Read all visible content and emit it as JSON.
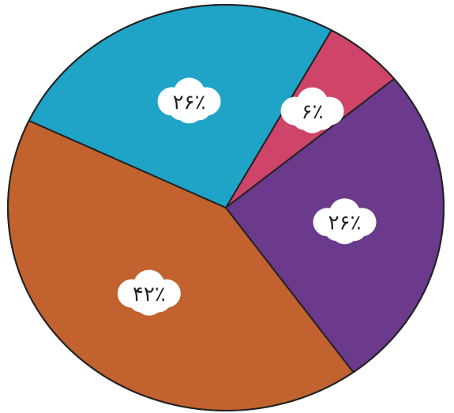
{
  "chart_data": {
    "type": "pie",
    "values": [
      6,
      26,
      42,
      26
    ],
    "value_labels": [
      "۶٪",
      "۲۶٪",
      "۴۲٪",
      "۲۶٪"
    ],
    "colors": [
      "#cf4469",
      "#6b3a8c",
      "#c1622f",
      "#1fa3c6"
    ]
  }
}
